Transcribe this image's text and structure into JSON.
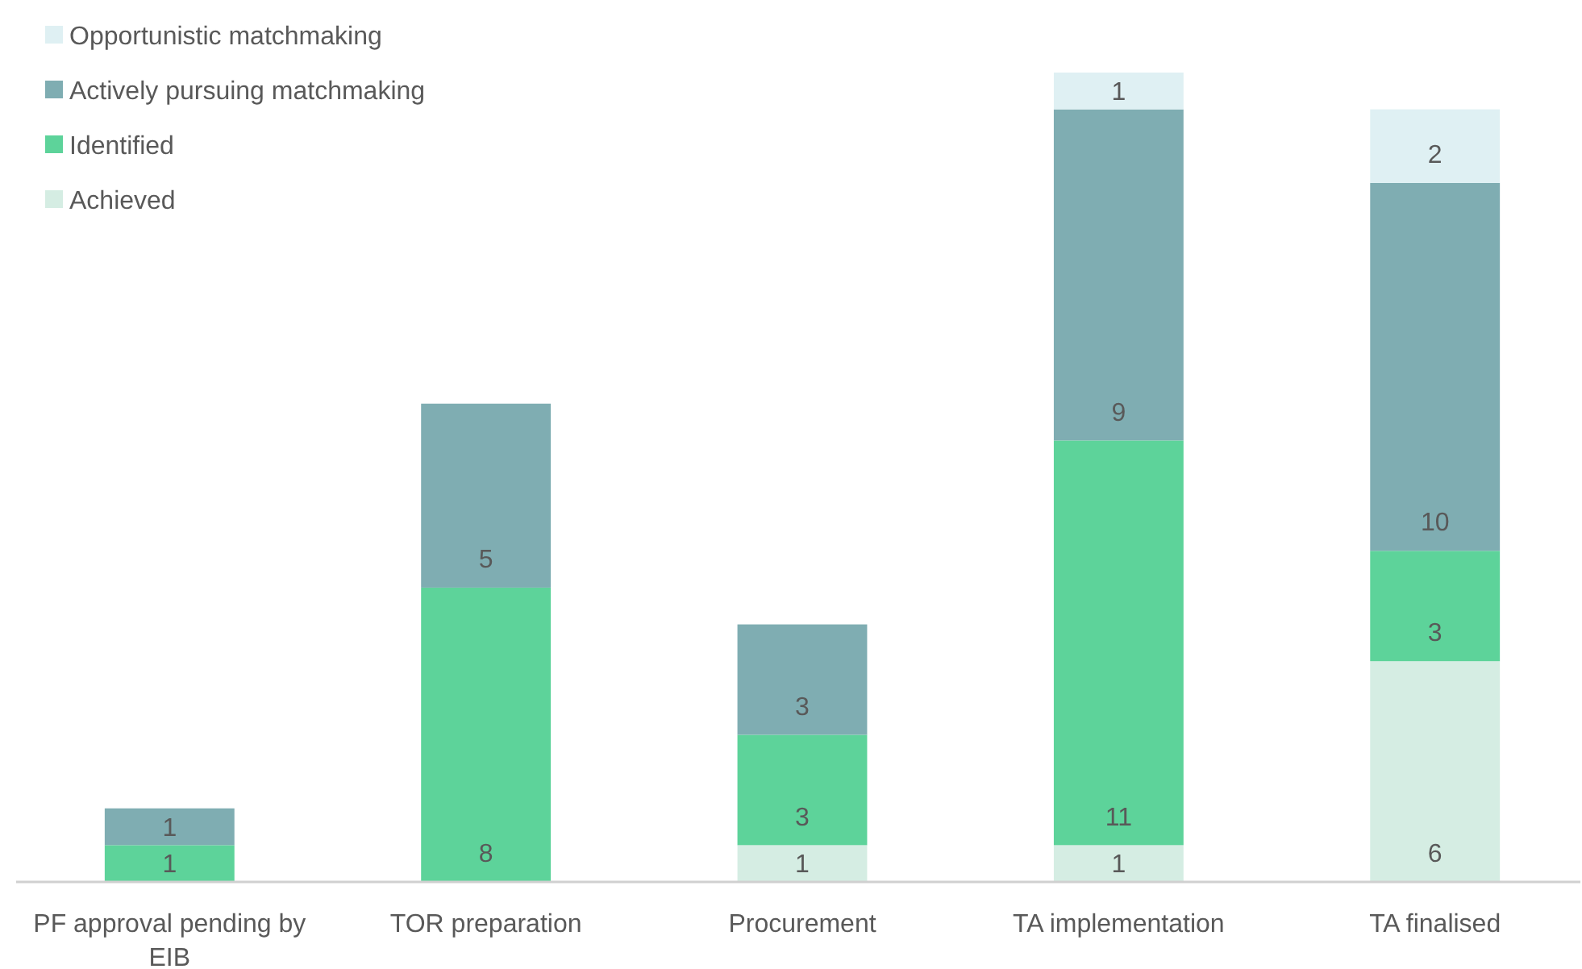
{
  "chart_data": {
    "type": "bar",
    "stacked": true,
    "data_labels": true,
    "legend": "top left",
    "categories": [
      "PF approval pending by EIB",
      "TOR preparation",
      "Procurement",
      "TA implementation",
      "TA finalised"
    ],
    "series": [
      {
        "name": "Achieved",
        "color": "#d5ede3",
        "values": [
          null,
          null,
          1,
          1,
          6
        ]
      },
      {
        "name": "Identified",
        "color": "#5dd39a",
        "values": [
          1,
          8,
          3,
          11,
          3
        ]
      },
      {
        "name": "Actively pursuing matchmaking",
        "color": "#7fadb2",
        "values": [
          1,
          5,
          3,
          9,
          10
        ]
      },
      {
        "name": "Opportunistic matchmaking",
        "color": "#dff0f3",
        "values": [
          null,
          null,
          null,
          1,
          2
        ]
      }
    ]
  }
}
